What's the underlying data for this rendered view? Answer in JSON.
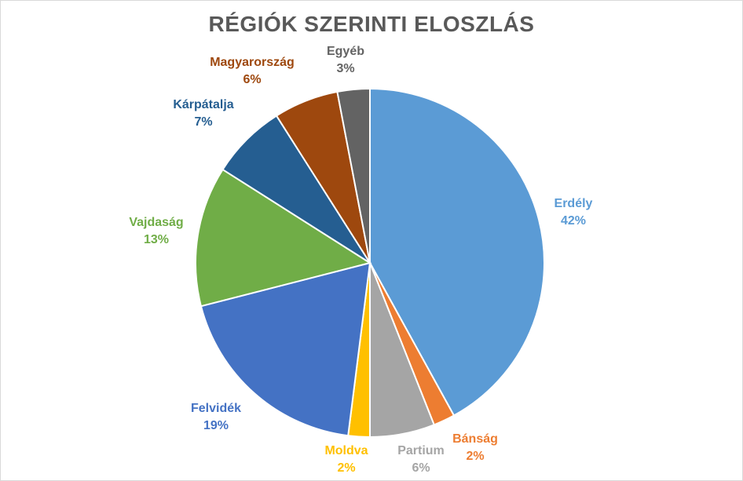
{
  "chart_data": {
    "type": "pie",
    "title": "RÉGIÓK SZERINTI ELOSZLÁS",
    "start_angle_deg": 0,
    "direction": "clockwise",
    "slices": [
      {
        "name": "Erdély",
        "value": 42,
        "label": "42%",
        "color": "#5b9bd5"
      },
      {
        "name": "Bánság",
        "value": 2,
        "label": "2%",
        "color": "#ed7d31"
      },
      {
        "name": "Partium",
        "value": 6,
        "label": "6%",
        "color": "#a5a5a5"
      },
      {
        "name": "Moldva",
        "value": 2,
        "label": "2%",
        "color": "#ffc000"
      },
      {
        "name": "Felvidék",
        "value": 19,
        "label": "19%",
        "color": "#4472c4"
      },
      {
        "name": "Vajdaság",
        "value": 13,
        "label": "13%",
        "color": "#70ad47"
      },
      {
        "name": "Kárpátalja",
        "value": 7,
        "label": "7%",
        "color": "#255e91"
      },
      {
        "name": "Magyarország",
        "value": 6,
        "label": "6%",
        "color": "#9e480e"
      },
      {
        "name": "Egyéb",
        "value": 3,
        "label": "3%",
        "color": "#636363"
      }
    ]
  }
}
